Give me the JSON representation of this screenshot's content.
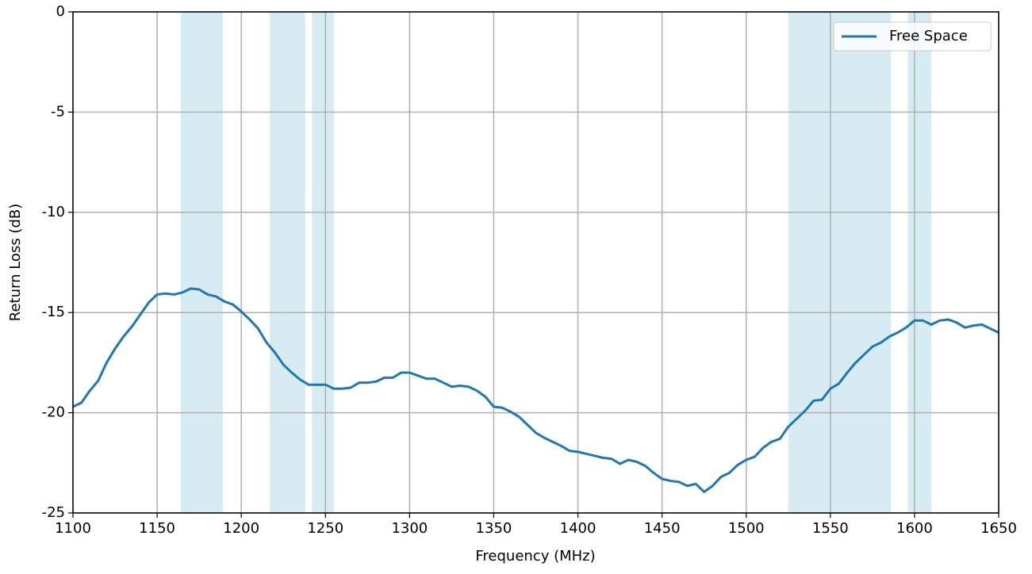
{
  "chart_data": {
    "type": "line",
    "xlabel": "Frequency (MHz)",
    "ylabel": "Return Loss (dB)",
    "x": [
      1100,
      1105,
      1110,
      1115,
      1120,
      1125,
      1130,
      1135,
      1140,
      1145,
      1150,
      1155,
      1160,
      1165,
      1170,
      1175,
      1180,
      1185,
      1190,
      1195,
      1200,
      1205,
      1210,
      1215,
      1220,
      1225,
      1230,
      1235,
      1240,
      1245,
      1250,
      1255,
      1260,
      1265,
      1270,
      1275,
      1280,
      1285,
      1290,
      1295,
      1300,
      1305,
      1310,
      1315,
      1320,
      1325,
      1330,
      1335,
      1340,
      1345,
      1350,
      1355,
      1360,
      1365,
      1370,
      1375,
      1380,
      1385,
      1390,
      1395,
      1400,
      1405,
      1410,
      1415,
      1420,
      1425,
      1430,
      1435,
      1440,
      1445,
      1450,
      1455,
      1460,
      1465,
      1470,
      1475,
      1480,
      1485,
      1490,
      1495,
      1500,
      1505,
      1510,
      1515,
      1520,
      1525,
      1530,
      1535,
      1540,
      1545,
      1550,
      1555,
      1560,
      1565,
      1570,
      1575,
      1580,
      1585,
      1590,
      1595,
      1600,
      1605,
      1610,
      1615,
      1620,
      1625,
      1630,
      1635,
      1640,
      1645,
      1650
    ],
    "series": [
      {
        "name": "Free Space",
        "color": "#1f77b4",
        "values": [
          -19.7,
          -19.5,
          -18.9,
          -18.4,
          -17.5,
          -16.8,
          -16.2,
          -15.7,
          -15.1,
          -14.5,
          -14.1,
          -14.05,
          -14.1,
          -14.0,
          -13.8,
          -13.85,
          -14.1,
          -14.2,
          -14.45,
          -14.6,
          -14.95,
          -15.35,
          -15.8,
          -16.5,
          -17.0,
          -17.6,
          -18.0,
          -18.35,
          -18.6,
          -18.6,
          -18.6,
          -18.8,
          -18.8,
          -18.75,
          -18.5,
          -18.5,
          -18.45,
          -18.25,
          -18.25,
          -18.0,
          -18.0,
          -18.15,
          -18.3,
          -18.3,
          -18.5,
          -18.7,
          -18.65,
          -18.7,
          -18.9,
          -19.2,
          -19.7,
          -19.75,
          -19.95,
          -20.2,
          -20.6,
          -21.0,
          -21.25,
          -21.45,
          -21.65,
          -21.9,
          -21.95,
          -22.05,
          -22.15,
          -22.25,
          -22.3,
          -22.55,
          -22.35,
          -22.45,
          -22.65,
          -23.0,
          -23.3,
          -23.4,
          -23.45,
          -23.65,
          -23.55,
          -23.95,
          -23.65,
          -23.2,
          -23.0,
          -22.6,
          -22.35,
          -22.2,
          -21.75,
          -21.45,
          -21.3,
          -20.7,
          -20.3,
          -19.9,
          -19.4,
          -19.35,
          -18.8,
          -18.55,
          -18.0,
          -17.5,
          -17.1,
          -16.7,
          -16.5,
          -16.2,
          -16.0,
          -15.75,
          -15.4,
          -15.4,
          -15.6,
          -15.4,
          -15.35,
          -15.5,
          -15.75,
          -15.65,
          -15.6,
          -15.8,
          -16.0
        ]
      }
    ],
    "shaded_regions": [
      [
        1164,
        1189
      ],
      [
        1217,
        1238
      ],
      [
        1242,
        1255
      ],
      [
        1525,
        1586
      ],
      [
        1596,
        1610
      ]
    ],
    "shade_color": "#add8e6",
    "xlim": [
      1100,
      1650
    ],
    "xticks": [
      1100,
      1150,
      1200,
      1250,
      1300,
      1350,
      1400,
      1450,
      1500,
      1550,
      1600,
      1650
    ],
    "ylim": [
      -25,
      0
    ],
    "yticks": [
      0,
      -5,
      -10,
      -15,
      -20,
      -25
    ],
    "grid": true,
    "legend": "upper right"
  }
}
